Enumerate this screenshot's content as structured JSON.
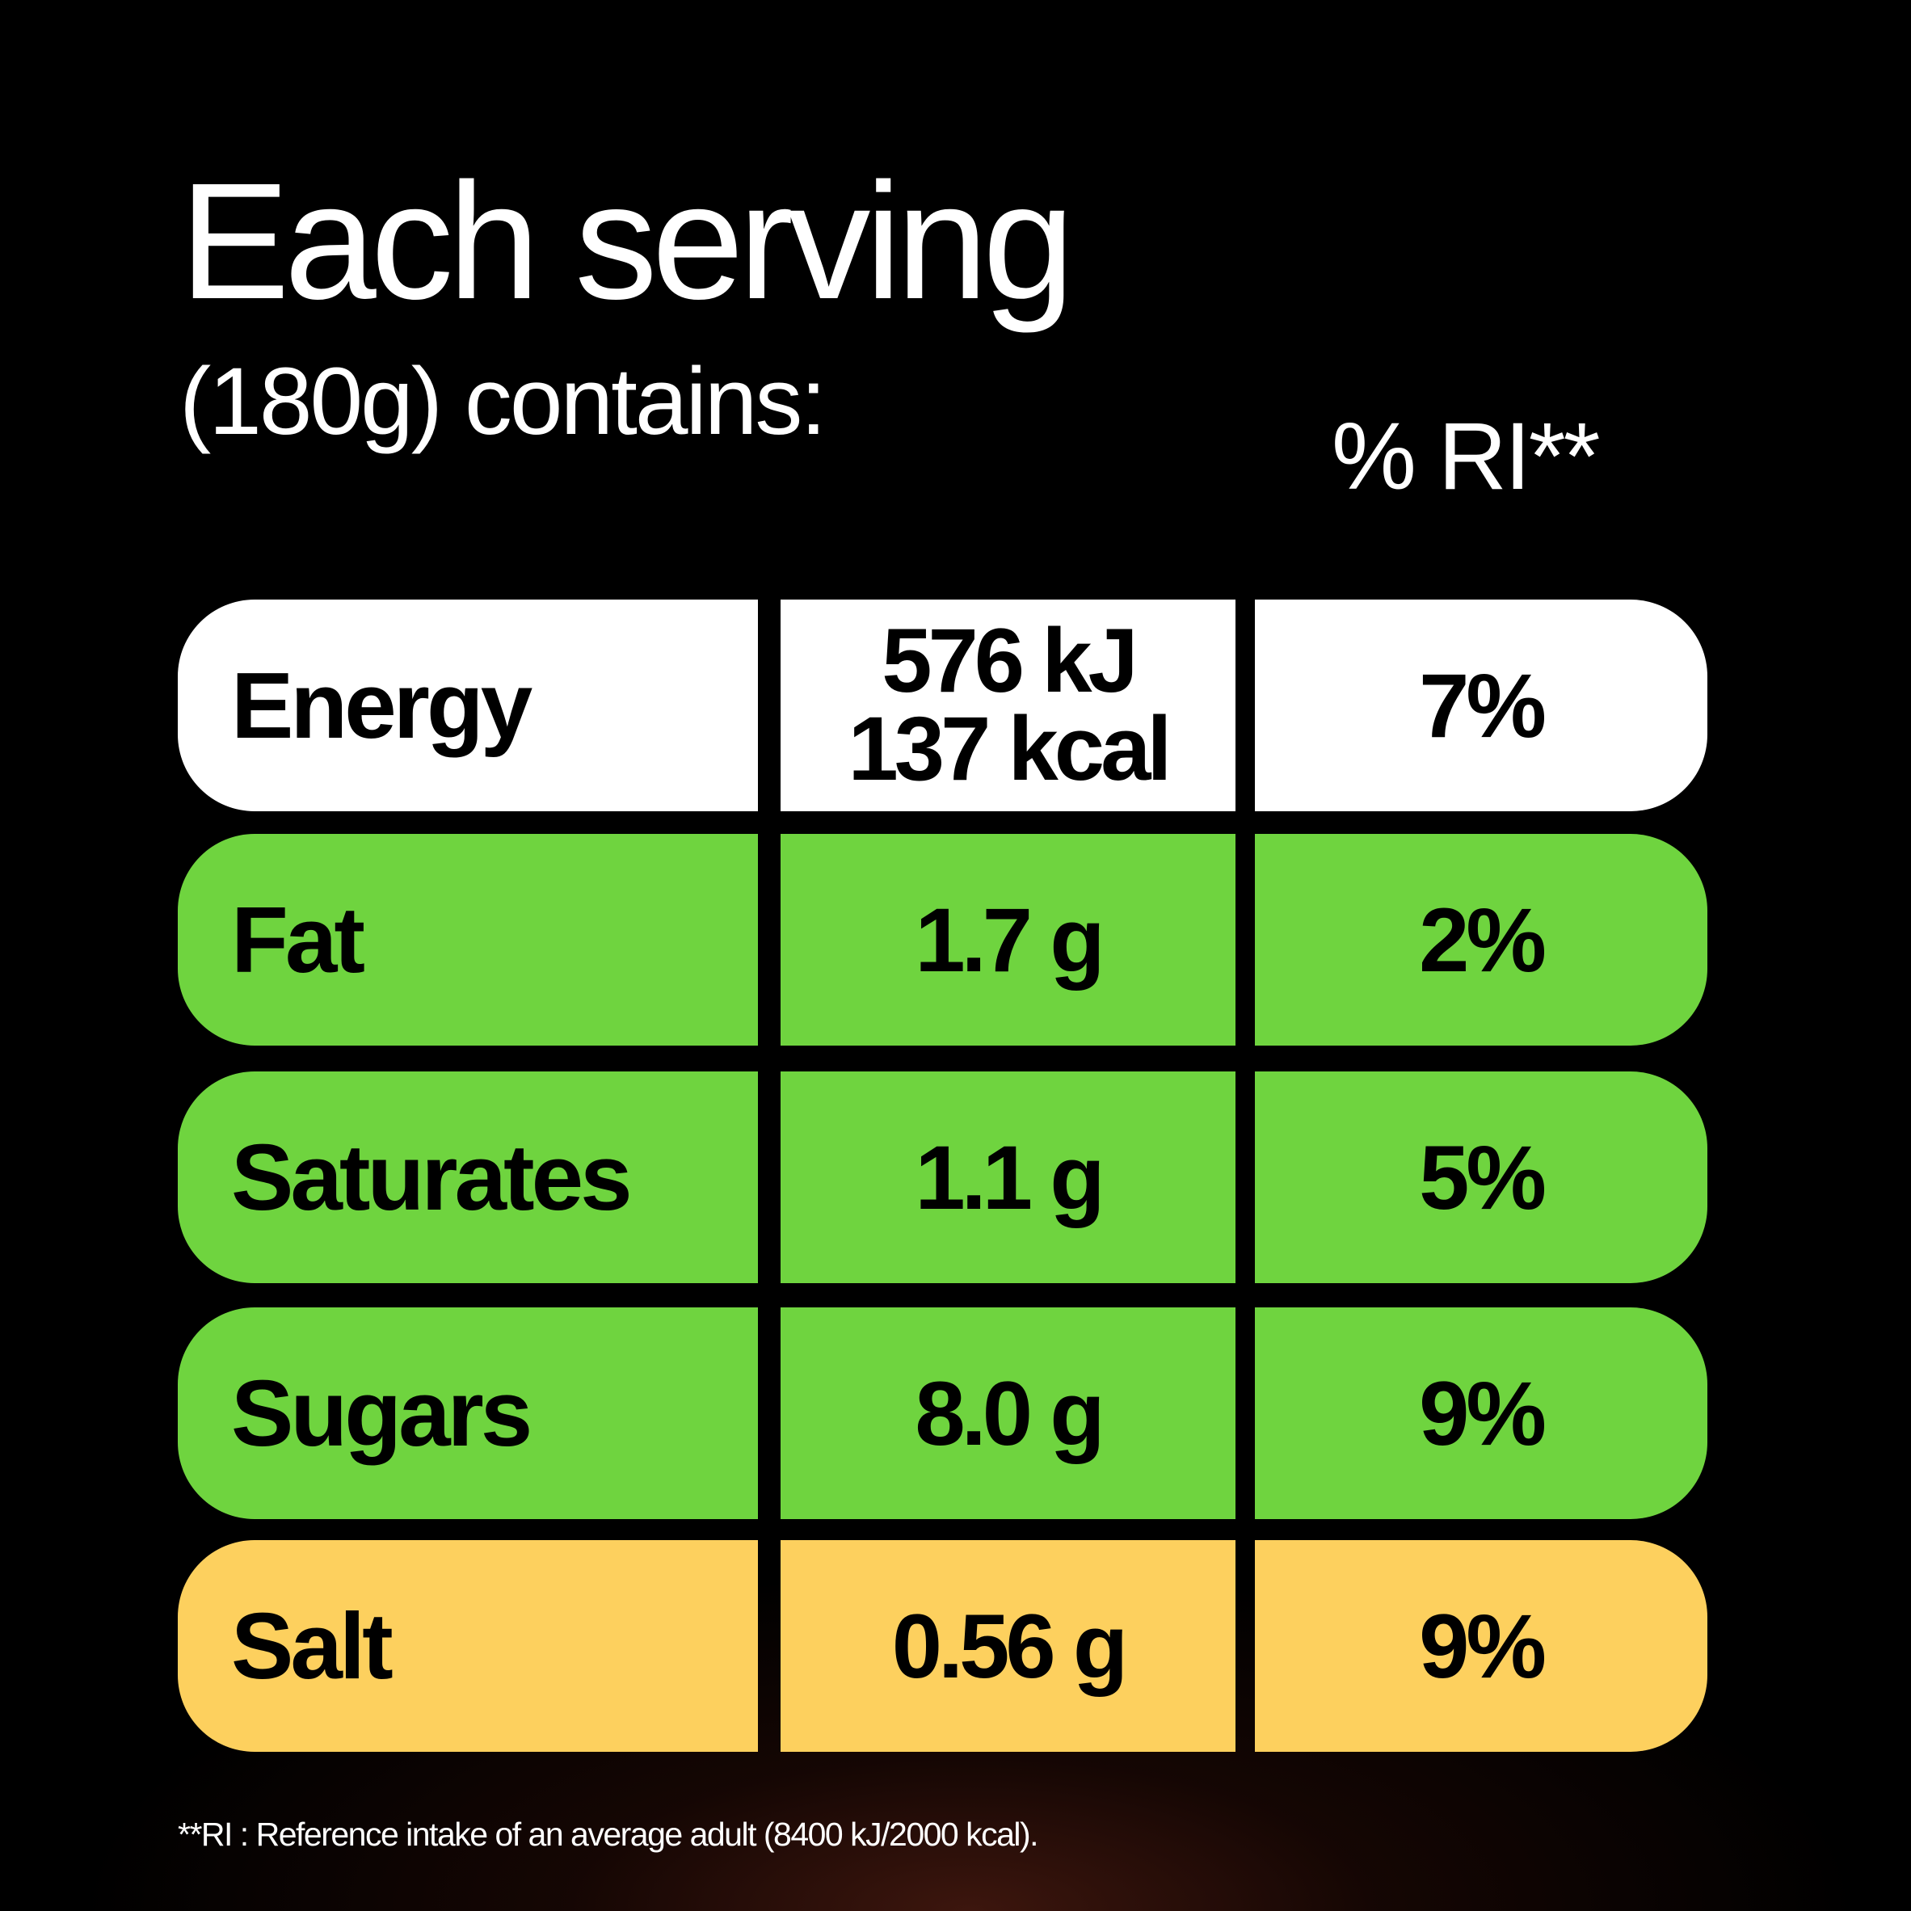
{
  "header": {
    "title": "Each serving",
    "subtitle": "(180g) contains:",
    "ri_column_label": "% RI**"
  },
  "rows": [
    {
      "nutrient": "Energy",
      "amount_line1": "576 kJ",
      "amount_line2": "137 kcal",
      "ri": "7%",
      "color": "#ffffff"
    },
    {
      "nutrient": "Fat",
      "amount": "1.7 g",
      "ri": "2%",
      "color": "#6fd43f"
    },
    {
      "nutrient": "Saturates",
      "amount": "1.1 g",
      "ri": "5%",
      "color": "#6fd43f"
    },
    {
      "nutrient": "Sugars",
      "amount": "8.0 g",
      "ri": "9%",
      "color": "#6fd43f"
    },
    {
      "nutrient": "Salt",
      "amount": "0.56 g",
      "ri": "9%",
      "color": "#fdd05e"
    }
  ],
  "footnote": "**RI : Reference intake of an average adult (8400 kJ/2000 kcal)."
}
